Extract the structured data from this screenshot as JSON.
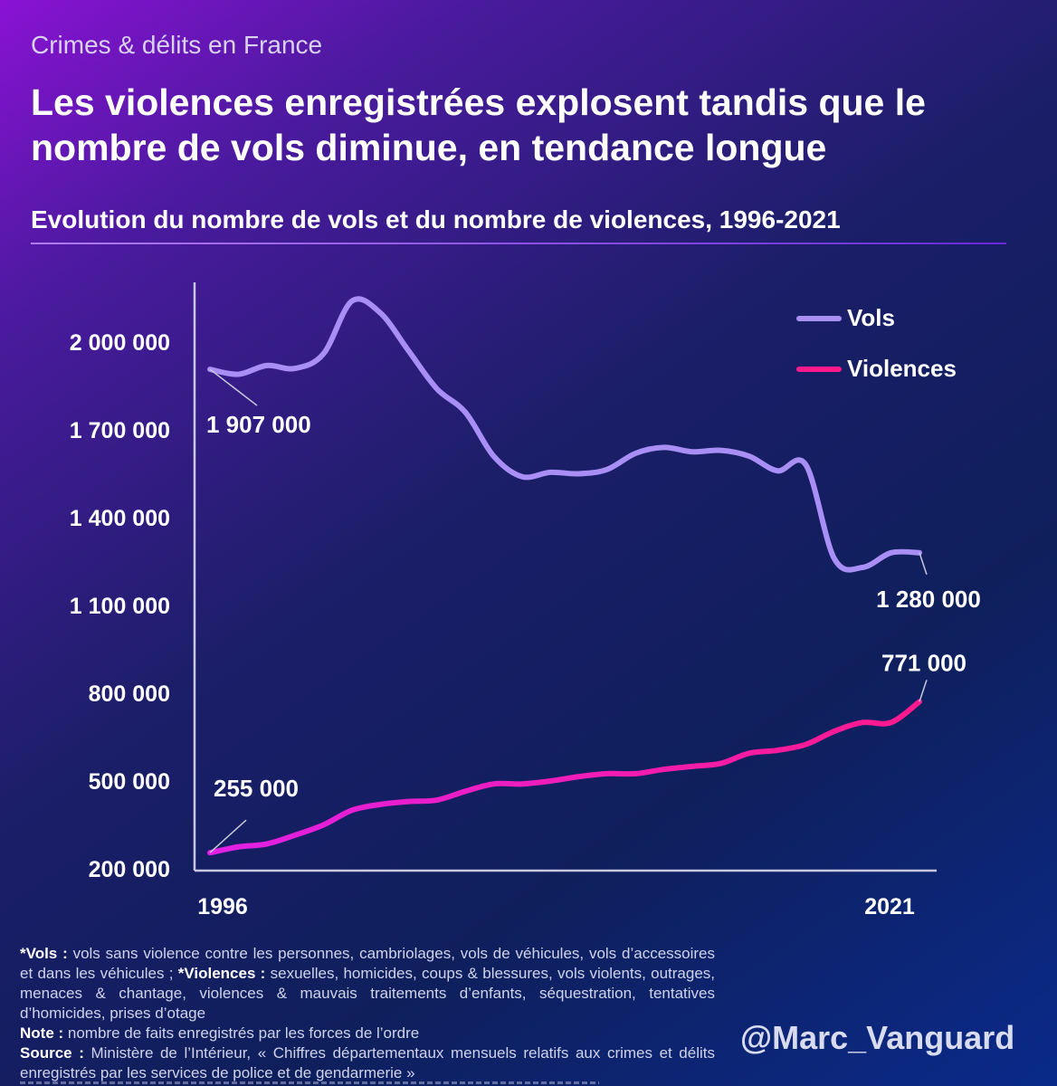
{
  "header": {
    "kicker": "Crimes & délits en France",
    "title": "Les violences enregistrées explosent tandis que le nombre de vols diminue, en tendance longue",
    "subtitle": "Evolution du nombre de vols et du nombre de violences, 1996-2021"
  },
  "colors": {
    "vols": "#a98ff5",
    "violences": "#ff1a8c",
    "violences_start": "#e020e6",
    "axis": "#c8c8e0"
  },
  "legend": {
    "vols": "Vols",
    "violences": "Violences"
  },
  "chart_data": {
    "type": "line",
    "x": [
      1996,
      1997,
      1998,
      1999,
      2000,
      2001,
      2002,
      2003,
      2004,
      2005,
      2006,
      2007,
      2008,
      2009,
      2010,
      2011,
      2012,
      2013,
      2014,
      2015,
      2016,
      2017,
      2018,
      2019,
      2020,
      2021
    ],
    "x_tick_labels": [
      "1996",
      "2021"
    ],
    "y_tick_labels": [
      "2 000 000",
      "1 700 000",
      "1 400 000",
      "1 100 000",
      "800 000",
      "500 000",
      "200 000"
    ],
    "y_ticks": [
      2000000,
      1700000,
      1400000,
      1100000,
      800000,
      500000,
      200000
    ],
    "ylim": [
      200000,
      2200000
    ],
    "series": [
      {
        "name": "Vols",
        "key": "vols",
        "values": [
          1907000,
          1890000,
          1920000,
          1910000,
          1960000,
          2140000,
          2100000,
          1970000,
          1840000,
          1760000,
          1610000,
          1540000,
          1555000,
          1550000,
          1565000,
          1620000,
          1640000,
          1625000,
          1630000,
          1610000,
          1560000,
          1580000,
          1260000,
          1230000,
          1280000,
          1280000
        ]
      },
      {
        "name": "Violences",
        "key": "violences",
        "values": [
          255000,
          275000,
          285000,
          315000,
          350000,
          400000,
          420000,
          430000,
          435000,
          465000,
          490000,
          490000,
          500000,
          515000,
          525000,
          525000,
          540000,
          550000,
          560000,
          595000,
          605000,
          625000,
          670000,
          700000,
          700000,
          771000
        ]
      }
    ],
    "annotations": [
      {
        "label": "1 907 000",
        "series": "vols",
        "index": 0
      },
      {
        "label": "1 280 000",
        "series": "vols",
        "index": 25
      },
      {
        "label": "255 000",
        "series": "violences",
        "index": 0
      },
      {
        "label": "771 000",
        "series": "violences",
        "index": 25
      }
    ]
  },
  "notes": {
    "vols_label": "*Vols :",
    "vols_text": " vols sans violence contre les personnes, cambriolages, vols de véhicules, vols d’accessoires et dans les véhicules ; ",
    "violences_label": "*Violences :",
    "violences_text": " sexuelles, homicides, coups & blessures, vols violents, outrages, menaces & chantage, violences & mauvais traitements d’enfants, séquestration, tentatives d’homicides, prises d’otage",
    "note_label": "Note :",
    "note_text": "  nombre de faits enregistrés par les forces de l’ordre",
    "source_label": "Source :",
    "source_text": " Ministère de l’Intérieur, « Chiffres départementaux mensuels relatifs aux crimes et délits enregistrés par les services de police et de gendarmerie »"
  },
  "handle": "@Marc_Vanguard"
}
